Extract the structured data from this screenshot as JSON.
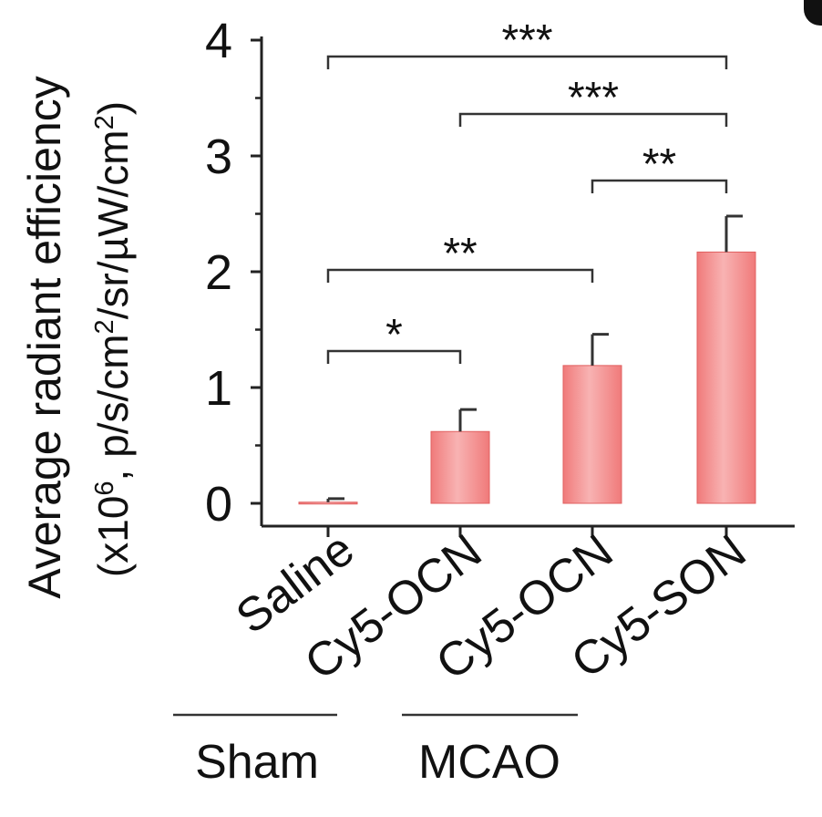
{
  "chart_data": {
    "type": "bar",
    "categories": [
      "Saline",
      "Cy5-OCN",
      "Cy5-OCN",
      "Cy5-SON"
    ],
    "values": [
      0.01,
      0.62,
      1.19,
      2.17
    ],
    "errors": [
      0.03,
      0.19,
      0.27,
      0.31
    ],
    "ylabel_line1": "Average radiant efficiency",
    "ylabel_line2_prefix": "(x10",
    "ylabel_line2_exp": "6",
    "ylabel_line2_mid": ", p/s/cm",
    "ylabel_line2_exp2": "2",
    "ylabel_line2_suffix": "/sr/µW/cm",
    "ylabel_line2_exp3": "2",
    "ylabel_line2_close": ")",
    "ylim": [
      0,
      4
    ],
    "yticks": [
      "0",
      "1",
      "2",
      "3",
      "4"
    ],
    "groups": [
      {
        "label": "Sham",
        "categories": [
          0
        ]
      },
      {
        "label": "MCAO",
        "categories": [
          1,
          2
        ]
      }
    ],
    "significance": [
      {
        "from": 0,
        "to": 3,
        "label": "***"
      },
      {
        "from": 1,
        "to": 3,
        "label": "***"
      },
      {
        "from": 2,
        "to": 3,
        "label": "**"
      },
      {
        "from": 0,
        "to": 2,
        "label": "**"
      },
      {
        "from": 0,
        "to": 1,
        "label": "*"
      }
    ],
    "bar_color": "#f07a7a",
    "bar_highlight": "#f8b3b3",
    "grid": false
  }
}
